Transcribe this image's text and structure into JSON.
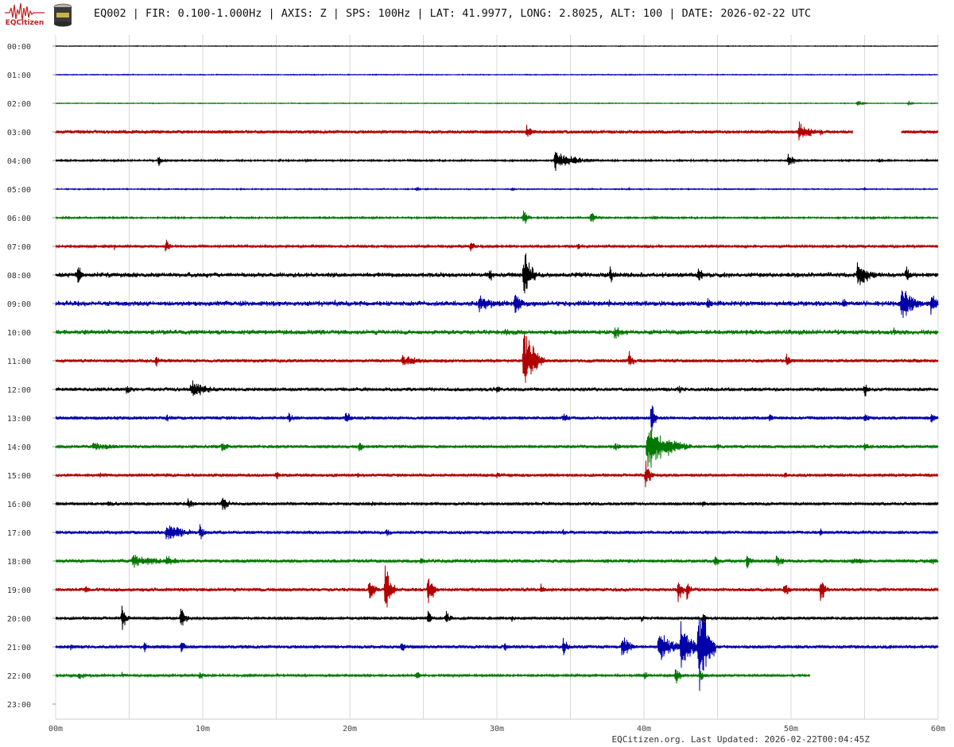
{
  "header": {
    "logo_text": "EQCitizen",
    "title": "EQ002 | FIR: 0.100-1.000Hz | AXIS: Z | SPS: 100Hz | LAT: 41.9977, LONG: 2.8025, ALT: 100 | DATE: 2026-02-22 UTC"
  },
  "footer": {
    "updated": "EQCitizen.org. Last Updated: 2026-02-22T00:04:45Z"
  },
  "colors": {
    "trace_cycle": [
      "#000000",
      "#0000a8",
      "#007800",
      "#b00000"
    ],
    "grid": "#d8d8d8"
  },
  "chart_data": {
    "type": "line",
    "title": "",
    "row_labels": [
      "00:00",
      "01:00",
      "02:00",
      "03:00",
      "04:00",
      "05:00",
      "06:00",
      "07:00",
      "08:00",
      "09:00",
      "10:00",
      "11:00",
      "12:00",
      "13:00",
      "14:00",
      "15:00",
      "16:00",
      "17:00",
      "18:00",
      "19:00",
      "20:00",
      "21:00",
      "22:00",
      "23:00"
    ],
    "x_ticks": [
      "00m",
      "10m",
      "20m",
      "30m",
      "40m",
      "50m",
      "60m"
    ],
    "x_range_minutes": [
      0,
      60
    ],
    "grid": true,
    "series": [
      {
        "row": "00:00",
        "noise": 0.35,
        "end": 60,
        "events": [
          [
            3.0,
            5,
            0.6
          ],
          [
            7.5,
            3,
            0.6
          ],
          [
            34,
            3,
            0.5
          ],
          [
            45,
            3,
            0.5
          ]
        ]
      },
      {
        "row": "01:00",
        "noise": 0.45,
        "end": 60,
        "events": [
          [
            6,
            2,
            0.6
          ],
          [
            10,
            2,
            0.6
          ],
          [
            18,
            2,
            0.6
          ],
          [
            25,
            2,
            0.6
          ],
          [
            38,
            2,
            0.6
          ],
          [
            52,
            2,
            0.6
          ]
        ]
      },
      {
        "row": "02:00",
        "noise": 0.4,
        "end": 60,
        "events": [
          [
            54.5,
            6,
            5.5,
            1
          ],
          [
            58,
            4,
            4
          ]
        ]
      },
      {
        "row": "03:00",
        "noise": 1.8,
        "end": 54.2,
        "segment2": [
          57.5,
          60
        ],
        "events": [
          [
            5,
            5,
            2.5
          ],
          [
            32,
            8,
            11
          ],
          [
            50.5,
            15,
            16
          ],
          [
            52,
            5,
            6
          ],
          [
            57,
            6,
            10
          ]
        ]
      },
      {
        "row": "04:00",
        "noise": 0.9,
        "end": 60,
        "events": [
          [
            7,
            5,
            10
          ],
          [
            17,
            4,
            3
          ],
          [
            33.9,
            25,
            16
          ],
          [
            49.8,
            8,
            12
          ],
          [
            56,
            3,
            4
          ]
        ]
      },
      {
        "row": "05:00",
        "noise": 0.6,
        "end": 60,
        "events": [
          [
            24.5,
            3,
            5
          ],
          [
            31,
            3,
            3
          ],
          [
            39,
            2,
            2
          ],
          [
            55,
            3,
            2
          ]
        ]
      },
      {
        "row": "06:00",
        "noise": 0.9,
        "end": 60,
        "events": [
          [
            15.5,
            3,
            3
          ],
          [
            31.8,
            5,
            16
          ],
          [
            36.4,
            6,
            12
          ],
          [
            40.6,
            5,
            5
          ],
          [
            55.5,
            3,
            3
          ]
        ]
      },
      {
        "row": "07:00",
        "noise": 1.3,
        "end": 60,
        "events": [
          [
            4,
            4,
            5
          ],
          [
            7.5,
            4,
            16
          ],
          [
            28.2,
            5,
            10
          ],
          [
            35.5,
            4,
            6
          ],
          [
            48,
            3,
            3
          ]
        ]
      },
      {
        "row": "08:00",
        "noise": 2.6,
        "end": 60,
        "events": [
          [
            1.5,
            5,
            18
          ],
          [
            10,
            3,
            5
          ],
          [
            29.5,
            5,
            12
          ],
          [
            31.8,
            8,
            50
          ],
          [
            37.7,
            5,
            14
          ],
          [
            43.7,
            6,
            14
          ],
          [
            54.5,
            14,
            22
          ],
          [
            57.8,
            4,
            16
          ]
        ]
      },
      {
        "row": "09:00",
        "noise": 2.8,
        "end": 60,
        "events": [
          [
            9,
            8,
            5
          ],
          [
            19,
            6,
            5
          ],
          [
            28.8,
            20,
            14
          ],
          [
            31.2,
            8,
            22
          ],
          [
            37.6,
            4,
            8
          ],
          [
            44.3,
            8,
            10
          ],
          [
            53.5,
            10,
            8
          ],
          [
            57.5,
            16,
            26
          ],
          [
            59.5,
            10,
            18
          ]
        ]
      },
      {
        "row": "10:00",
        "noise": 2.6,
        "end": 60,
        "events": [
          [
            15.5,
            8,
            6
          ],
          [
            30.5,
            15,
            8
          ],
          [
            38,
            14,
            10
          ],
          [
            46,
            6,
            4
          ],
          [
            57,
            5,
            8
          ]
        ]
      },
      {
        "row": "11:00",
        "noise": 1.8,
        "end": 60,
        "events": [
          [
            6.8,
            6,
            10
          ],
          [
            23.5,
            25,
            9
          ],
          [
            31.8,
            12,
            58
          ],
          [
            39,
            5,
            16
          ],
          [
            49.7,
            6,
            12
          ]
        ]
      },
      {
        "row": "12:00",
        "noise": 2.0,
        "end": 60,
        "events": [
          [
            4.8,
            8,
            8
          ],
          [
            9.2,
            20,
            14
          ],
          [
            13.5,
            6,
            5
          ],
          [
            30,
            5,
            8
          ],
          [
            42.3,
            6,
            8
          ],
          [
            55,
            5,
            12
          ]
        ]
      },
      {
        "row": "13:00",
        "noise": 1.7,
        "end": 60,
        "events": [
          [
            7.5,
            10,
            6
          ],
          [
            15.8,
            6,
            10
          ],
          [
            19.7,
            6,
            14
          ],
          [
            34.5,
            7,
            10
          ],
          [
            40.5,
            4,
            30
          ],
          [
            48.5,
            6,
            8
          ],
          [
            55,
            7,
            8
          ],
          [
            59.5,
            6,
            10
          ]
        ]
      },
      {
        "row": "14:00",
        "noise": 1.6,
        "end": 60,
        "events": [
          [
            2.5,
            40,
            6
          ],
          [
            11.3,
            6,
            12
          ],
          [
            20.6,
            5,
            14
          ],
          [
            38,
            8,
            8
          ],
          [
            40.2,
            25,
            36
          ],
          [
            45,
            6,
            6
          ],
          [
            55,
            6,
            8
          ]
        ]
      },
      {
        "row": "15:00",
        "noise": 1.6,
        "end": 60,
        "events": [
          [
            3,
            8,
            5
          ],
          [
            15,
            5,
            8
          ],
          [
            20.5,
            6,
            5
          ],
          [
            30,
            5,
            6
          ],
          [
            40.1,
            6,
            22
          ],
          [
            49.5,
            6,
            6
          ],
          [
            55,
            4,
            5
          ]
        ]
      },
      {
        "row": "16:00",
        "noise": 1.6,
        "end": 60,
        "events": [
          [
            3.5,
            20,
            5
          ],
          [
            9,
            10,
            8
          ],
          [
            11.3,
            8,
            14
          ],
          [
            21.5,
            5,
            6
          ],
          [
            33.5,
            5,
            5
          ],
          [
            44,
            6,
            6
          ]
        ]
      },
      {
        "row": "17:00",
        "noise": 1.7,
        "end": 60,
        "events": [
          [
            7.5,
            25,
            14
          ],
          [
            9.8,
            4,
            18
          ],
          [
            22.5,
            6,
            7
          ],
          [
            34.5,
            5,
            6
          ],
          [
            43.5,
            5,
            5
          ],
          [
            52,
            6,
            6
          ]
        ]
      },
      {
        "row": "18:00",
        "noise": 1.9,
        "end": 60,
        "events": [
          [
            5.2,
            35,
            10
          ],
          [
            7.5,
            15,
            10
          ],
          [
            24.8,
            5,
            8
          ],
          [
            44.8,
            5,
            12
          ],
          [
            47,
            6,
            14
          ],
          [
            49,
            8,
            10
          ],
          [
            54,
            35,
            5
          ],
          [
            59.5,
            6,
            8
          ]
        ]
      },
      {
        "row": "19:00",
        "noise": 1.9,
        "end": 60,
        "events": [
          [
            2,
            12,
            6
          ],
          [
            21.3,
            5,
            26
          ],
          [
            22.4,
            7,
            42
          ],
          [
            25.3,
            6,
            32
          ],
          [
            33,
            4,
            10
          ],
          [
            42.3,
            5,
            24
          ],
          [
            42.9,
            4,
            22
          ],
          [
            49.5,
            6,
            14
          ],
          [
            52,
            5,
            24
          ]
        ]
      },
      {
        "row": "20:00",
        "noise": 1.6,
        "end": 60,
        "events": [
          [
            4.5,
            5,
            20
          ],
          [
            8.5,
            6,
            20
          ],
          [
            25.3,
            5,
            14
          ],
          [
            26.5,
            6,
            12
          ],
          [
            31,
            5,
            6
          ],
          [
            39.8,
            5,
            6
          ],
          [
            44,
            5,
            10
          ]
        ]
      },
      {
        "row": "21:00",
        "noise": 1.8,
        "end": 60,
        "events": [
          [
            1,
            10,
            5
          ],
          [
            6,
            6,
            10
          ],
          [
            8.5,
            6,
            12
          ],
          [
            23.5,
            6,
            10
          ],
          [
            30.5,
            5,
            8
          ],
          [
            34.5,
            6,
            14
          ],
          [
            38.5,
            8,
            24
          ],
          [
            41,
            15,
            28
          ],
          [
            42.5,
            12,
            50
          ],
          [
            43.7,
            10,
            90
          ]
        ]
      },
      {
        "row": "22:00",
        "noise": 1.2,
        "end": 51.3,
        "events": [
          [
            1.5,
            20,
            6
          ],
          [
            4.5,
            6,
            5
          ],
          [
            9.8,
            6,
            8
          ],
          [
            24.5,
            6,
            8
          ],
          [
            40,
            6,
            8
          ],
          [
            42.1,
            8,
            14
          ],
          [
            43.8,
            6,
            10
          ]
        ]
      },
      {
        "row": "23:00",
        "noise": 0,
        "end": 0,
        "events": []
      }
    ]
  }
}
